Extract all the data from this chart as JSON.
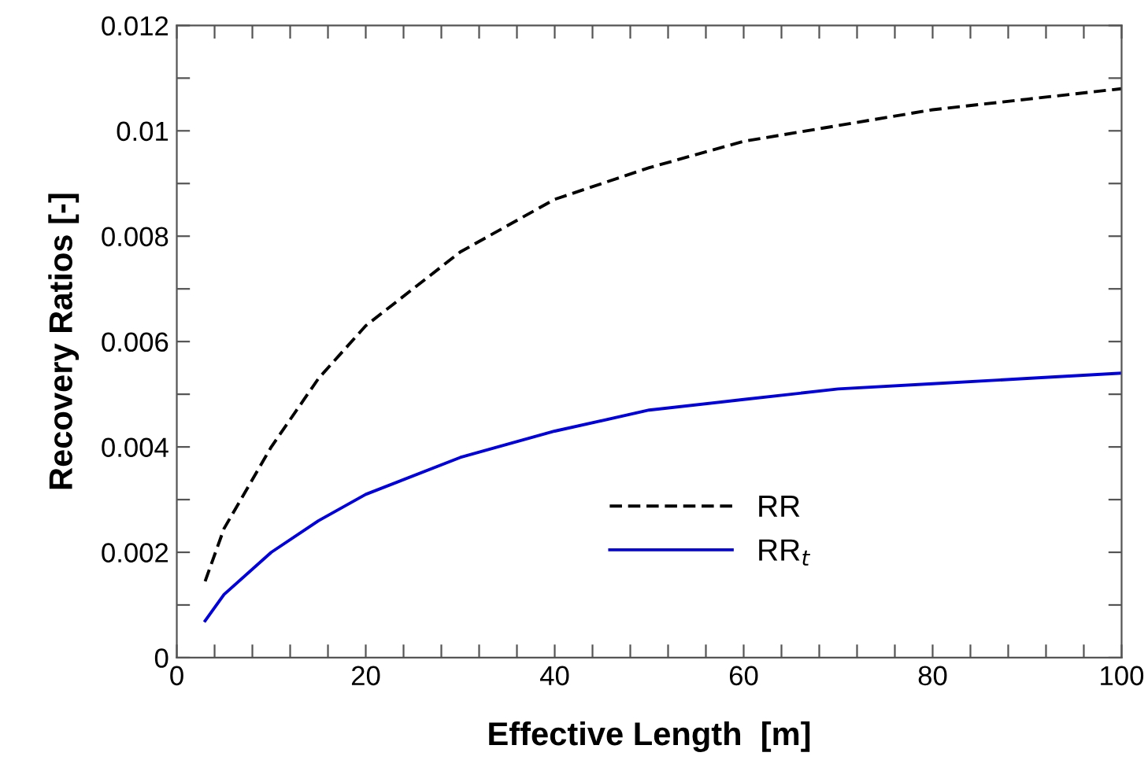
{
  "chart_data": {
    "type": "line",
    "xlabel": "Effective Length  [m]",
    "ylabel": "Recovery Ratios [-]",
    "xlim": [
      0,
      100
    ],
    "ylim": [
      0,
      0.012
    ],
    "xticks": [
      0,
      {
        "value": 4,
        "label": null
      },
      {
        "value": 8,
        "label": null
      },
      {
        "value": 12,
        "label": null
      },
      {
        "value": 16,
        "label": null
      },
      20,
      {
        "value": 24,
        "label": null
      },
      {
        "value": 28,
        "label": null
      },
      {
        "value": 32,
        "label": null
      },
      {
        "value": 36,
        "label": null
      },
      40,
      {
        "value": 44,
        "label": null
      },
      {
        "value": 48,
        "label": null
      },
      {
        "value": 52,
        "label": null
      },
      {
        "value": 56,
        "label": null
      },
      60,
      {
        "value": 64,
        "label": null
      },
      {
        "value": 68,
        "label": null
      },
      {
        "value": 72,
        "label": null
      },
      {
        "value": 76,
        "label": null
      },
      80,
      {
        "value": 84,
        "label": null
      },
      {
        "value": 88,
        "label": null
      },
      {
        "value": 92,
        "label": null
      },
      {
        "value": 96,
        "label": null
      },
      100
    ],
    "yticks": [
      0,
      {
        "value": 0.001,
        "label": null
      },
      0.002,
      {
        "value": 0.003,
        "label": null
      },
      0.004,
      {
        "value": 0.005,
        "label": null
      },
      0.006,
      {
        "value": 0.007,
        "label": null
      },
      0.008,
      {
        "value": 0.009,
        "label": null
      },
      0.01,
      {
        "value": 0.011,
        "label": null
      },
      0.012
    ],
    "grid": false,
    "legend": "bottom right",
    "series": [
      {
        "name": "RR",
        "color": "#000000",
        "line_style": "dashed",
        "x": [
          3,
          5,
          10,
          15,
          20,
          30,
          40,
          50,
          60,
          70,
          80,
          90,
          100
        ],
        "values": [
          0.00145,
          0.00245,
          0.004,
          0.0053,
          0.0063,
          0.0077,
          0.0087,
          0.0093,
          0.0098,
          0.0101,
          0.0104,
          0.0106,
          0.0108
        ]
      },
      {
        "name": "RR$_{t}$",
        "color": "#0000dd",
        "line_style": "solid",
        "x": [
          3,
          5,
          10,
          15,
          20,
          30,
          40,
          50,
          60,
          70,
          80,
          90,
          100
        ],
        "values": [
          0.0007,
          0.0012,
          0.002,
          0.0026,
          0.0031,
          0.0038,
          0.0043,
          0.0047,
          0.0049,
          0.0051,
          0.0052,
          0.0053,
          0.0054
        ]
      }
    ]
  }
}
